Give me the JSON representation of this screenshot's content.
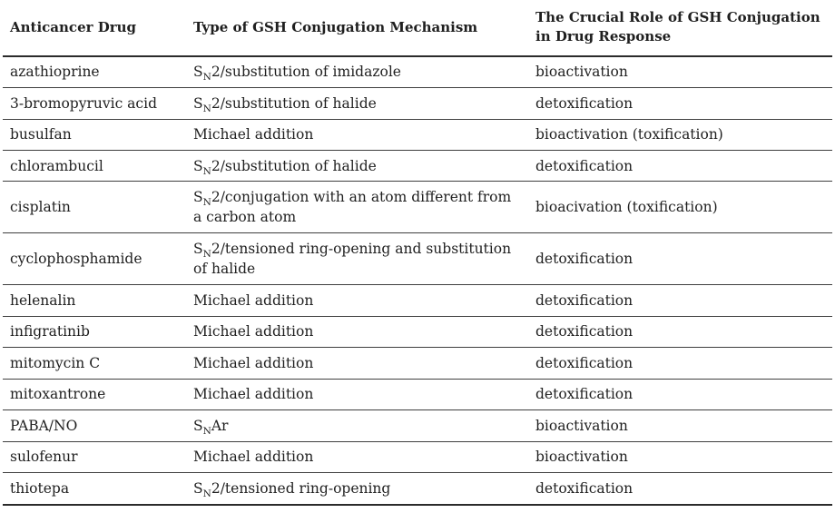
{
  "table": {
    "columns": [
      {
        "label": "Anticancer Drug"
      },
      {
        "label": "Type of GSH Conjugation Mechanism"
      },
      {
        "label": "The Crucial Role of GSH Conjugation in Drug Response"
      }
    ],
    "rows": [
      {
        "drug": "azathioprine",
        "mechanism_pre": "S",
        "mechanism_sub": "N",
        "mechanism_post": "2/substitution of imidazole",
        "role": "bioactivation"
      },
      {
        "drug": "3-bromopyruvic acid",
        "mechanism_pre": "S",
        "mechanism_sub": "N",
        "mechanism_post": "2/substitution of halide",
        "role": "detoxification"
      },
      {
        "drug": "busulfan",
        "mechanism_pre": "Michael addition",
        "mechanism_sub": "",
        "mechanism_post": "",
        "role": "bioactivation (toxification)"
      },
      {
        "drug": "chlorambucil",
        "mechanism_pre": "S",
        "mechanism_sub": "N",
        "mechanism_post": "2/substitution of halide",
        "role": "detoxification"
      },
      {
        "drug": "cisplatin",
        "mechanism_pre": "S",
        "mechanism_sub": "N",
        "mechanism_post": "2/conjugation with an atom different from a carbon atom",
        "role": "bioacivation (toxification)"
      },
      {
        "drug": "cyclophosphamide",
        "mechanism_pre": "S",
        "mechanism_sub": "N",
        "mechanism_post": "2/tensioned ring-opening and substitution of halide",
        "role": "detoxification"
      },
      {
        "drug": "helenalin",
        "mechanism_pre": "Michael addition",
        "mechanism_sub": "",
        "mechanism_post": "",
        "role": "detoxification"
      },
      {
        "drug": "infigratinib",
        "mechanism_pre": "Michael addition",
        "mechanism_sub": "",
        "mechanism_post": "",
        "role": "detoxification"
      },
      {
        "drug": "mitomycin C",
        "mechanism_pre": "Michael addition",
        "mechanism_sub": "",
        "mechanism_post": "",
        "role": "detoxification"
      },
      {
        "drug": "mitoxantrone",
        "mechanism_pre": "Michael addition",
        "mechanism_sub": "",
        "mechanism_post": "",
        "role": "detoxification"
      },
      {
        "drug": "PABA/NO",
        "mechanism_pre": "S",
        "mechanism_sub": "N",
        "mechanism_post": "Ar",
        "role": "bioactivation"
      },
      {
        "drug": "sulofenur",
        "mechanism_pre": "Michael addition",
        "mechanism_sub": "",
        "mechanism_post": "",
        "role": "bioactivation"
      },
      {
        "drug": "thiotepa",
        "mechanism_pre": "S",
        "mechanism_sub": "N",
        "mechanism_post": "2/tensioned ring-opening",
        "role": "detoxification"
      }
    ],
    "colors": {
      "text": "#1f1f1f",
      "rule_thick": "#2b2b2b",
      "rule_thin": "#3f3f3f",
      "background": "#ffffff"
    }
  }
}
